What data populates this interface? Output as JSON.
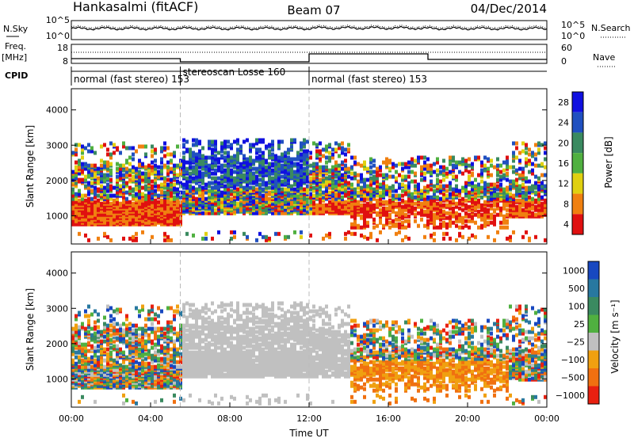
{
  "header": {
    "station": "Hankasalmi (fitACF)",
    "beam": "Beam 07",
    "date": "04/Dec/2014"
  },
  "side_labels": {
    "nsky": "N.Sky",
    "nsearch": "N.Search",
    "freq": "Freq.",
    "freq_unit": "[MHz]",
    "nave": "Nave",
    "cpid": "CPID"
  },
  "noise_panel": {
    "ytick_top": "10^5",
    "ytick_bottom": "10^0",
    "right_tick_top": "10^5",
    "right_tick_bottom": "10^0"
  },
  "freq_panel": {
    "ytick_top": "18",
    "ytick_bottom": "8",
    "right_tick_top": "60",
    "right_tick_bottom": "0"
  },
  "cpid_segments": [
    {
      "label": "normal (fast stereo) 153",
      "start_hour": 0.0,
      "end_hour": 5.5
    },
    {
      "label": "stereoscan Losse 160",
      "start_hour": 5.5,
      "end_hour": 12.0
    },
    {
      "label": "normal (fast stereo) 153",
      "start_hour": 12.0,
      "end_hour": 24.0
    }
  ],
  "chart_data": [
    {
      "type": "heatmap",
      "name": "power",
      "ylabel": "Slant Range [km]",
      "yticks": [
        "1000",
        "2000",
        "3000",
        "4000"
      ],
      "ylim": [
        200,
        4600
      ],
      "xlim": [
        0,
        24
      ],
      "colorbar_label": "Power [dB]",
      "colorbar_ticks": [
        "4",
        "8",
        "12",
        "16",
        "20",
        "24",
        "28"
      ],
      "colorbar_colors": [
        "#1010e0",
        "#2050c0",
        "#3a8a60",
        "#50b040",
        "#e0d010",
        "#f08010",
        "#e01010"
      ]
    },
    {
      "type": "heatmap",
      "name": "velocity",
      "ylabel": "Slant Range [km]",
      "yticks": [
        "1000",
        "2000",
        "3000",
        "4000"
      ],
      "ylim": [
        200,
        4600
      ],
      "xlim": [
        0,
        24
      ],
      "colorbar_label": "Velocity [m s⁻¹]",
      "colorbar_ticks": [
        "1000",
        "500",
        "100",
        "25",
        "−25",
        "−100",
        "−500",
        "−1000"
      ],
      "colorbar_colors": [
        "#1848c0",
        "#2878a0",
        "#3a8a60",
        "#50b040",
        "#c0c0c0",
        "#f0a010",
        "#f07010",
        "#e82010"
      ]
    }
  ],
  "xaxis": {
    "label": "Time UT",
    "ticks": [
      "00:00",
      "04:00",
      "08:00",
      "12:00",
      "16:00",
      "20:00",
      "00:00"
    ]
  }
}
